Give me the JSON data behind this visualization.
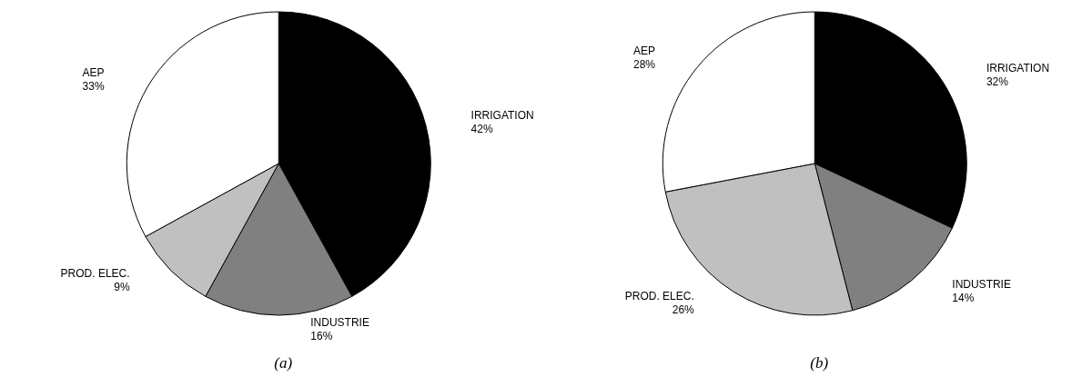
{
  "chart_data": [
    {
      "type": "pie",
      "title": "(a)",
      "categories": [
        "IRRIGATION",
        "INDUSTRIE",
        "PROD. ELEC.",
        "AEP"
      ],
      "values": [
        42,
        16,
        9,
        33
      ],
      "value_labels": [
        "42%",
        "16%",
        "9%",
        "33%"
      ],
      "colors": [
        "#000000",
        "#808080",
        "#c0c0c0",
        "#ffffff"
      ],
      "legend": false
    },
    {
      "type": "pie",
      "title": "(b)",
      "categories": [
        "IRRIGATION",
        "INDUSTRIE",
        "PROD. ELEC.",
        "AEP"
      ],
      "values": [
        32,
        14,
        26,
        28
      ],
      "value_labels": [
        "32%",
        "14%",
        "26%",
        "28%"
      ],
      "colors": [
        "#000000",
        "#808080",
        "#c0c0c0",
        "#ffffff"
      ],
      "legend": false
    }
  ]
}
